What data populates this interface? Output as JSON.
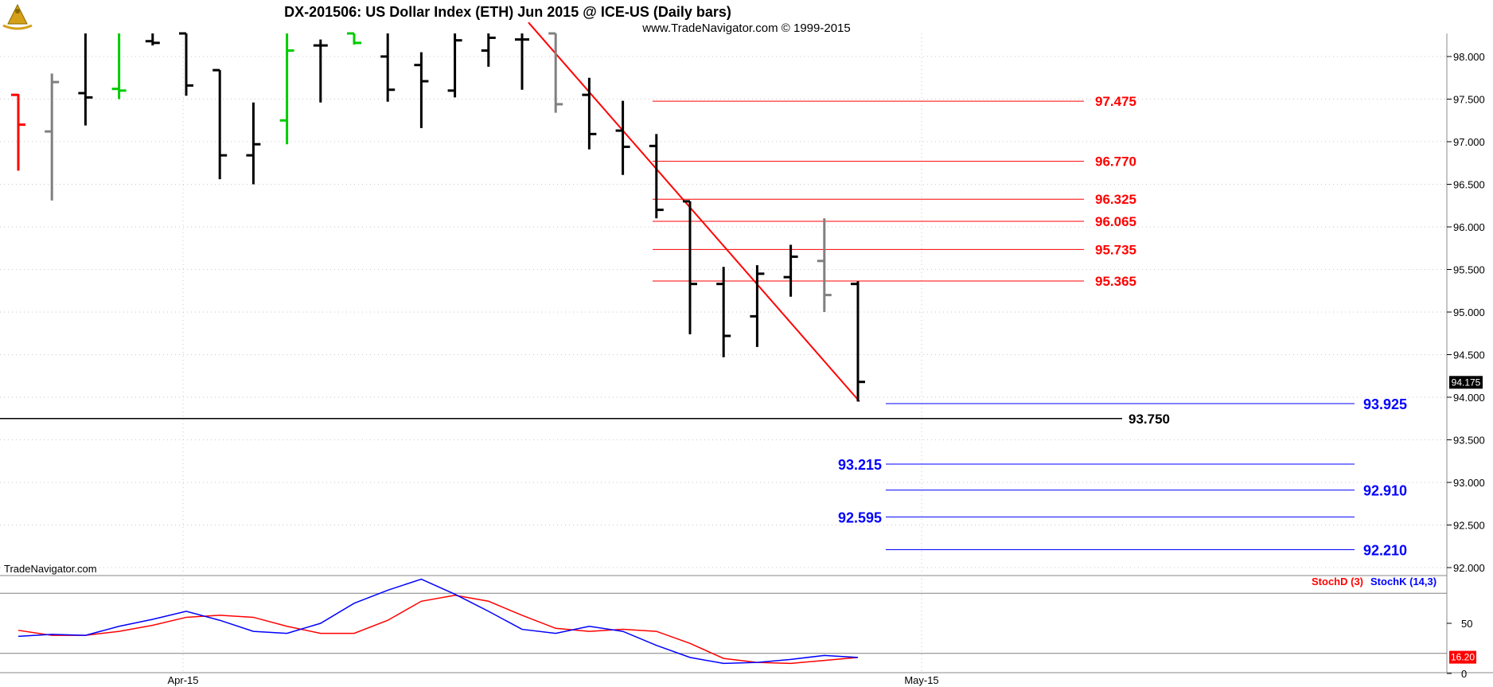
{
  "header": {
    "title": "DX-201506:  US Dollar Index (ETH) Jun 2015 @ ICE-US  (Daily bars)",
    "subtitle": "www.TradeNavigator.com © 1999-2015",
    "watermark": "TradeNavigator.com"
  },
  "logo": {
    "icon": "sextant-logo-icon",
    "color": "#d4a017"
  },
  "colors": {
    "bar": "#000000",
    "bar_gray": "#808080",
    "bar_red": "#ff0000",
    "bar_green": "#00cc00",
    "fib_up": "#ff0000",
    "fib_down": "#0000ff",
    "support": "#000000",
    "stoch_d": "#ff0000",
    "stoch_k": "#0000ff"
  },
  "chart_data": [
    {
      "type": "ohlc",
      "title": "DX-201506:  US Dollar Index (ETH) Jun 2015 @ ICE-US  (Daily bars)",
      "ylim": [
        91.75,
        98.4
      ],
      "y_ticks": [
        "98.000",
        "97.500",
        "97.000",
        "96.500",
        "96.000",
        "95.500",
        "95.000",
        "94.500",
        "94.000",
        "93.500",
        "93.000",
        "92.500",
        "92.000"
      ],
      "x_labels": [
        "Apr-15",
        "May-15"
      ],
      "bars": [
        {
          "o": 97.55,
          "h": 97.56,
          "l": 96.66,
          "c": 97.2,
          "color": "red"
        },
        {
          "o": 97.12,
          "h": 97.8,
          "l": 96.31,
          "c": 97.7,
          "color": "gray"
        },
        {
          "o": 97.57,
          "h": 98.4,
          "l": 97.19,
          "c": 97.52,
          "color": "black"
        },
        {
          "o": 97.62,
          "h": 98.4,
          "l": 97.5,
          "c": 97.6,
          "color": "green"
        },
        {
          "o": 98.18,
          "h": 98.4,
          "l": 98.13,
          "c": 98.16,
          "color": "black"
        },
        {
          "o": 98.3,
          "h": 98.4,
          "l": 97.54,
          "c": 97.66,
          "color": "black"
        },
        {
          "o": 97.84,
          "h": 97.84,
          "l": 96.56,
          "c": 96.84,
          "color": "black"
        },
        {
          "o": 96.84,
          "h": 97.46,
          "l": 96.5,
          "c": 96.97,
          "color": "black"
        },
        {
          "o": 97.25,
          "h": 98.4,
          "l": 96.97,
          "c": 98.07,
          "color": "green"
        },
        {
          "o": 98.13,
          "h": 98.2,
          "l": 97.46,
          "c": 98.13,
          "color": "black"
        },
        {
          "o": 98.4,
          "h": 98.4,
          "l": 98.14,
          "c": 98.16,
          "color": "green"
        },
        {
          "o": 98.0,
          "h": 98.4,
          "l": 97.47,
          "c": 97.61,
          "color": "black"
        },
        {
          "o": 97.9,
          "h": 98.05,
          "l": 97.16,
          "c": 97.71,
          "color": "black"
        },
        {
          "o": 97.6,
          "h": 98.4,
          "l": 97.52,
          "c": 98.19,
          "color": "black"
        },
        {
          "o": 98.07,
          "h": 98.4,
          "l": 97.88,
          "c": 98.22,
          "color": "black"
        },
        {
          "o": 98.2,
          "h": 98.4,
          "l": 97.61,
          "c": 98.2,
          "color": "black"
        },
        {
          "o": 98.3,
          "h": 98.4,
          "l": 97.34,
          "c": 97.44,
          "color": "gray"
        },
        {
          "o": 97.55,
          "h": 97.75,
          "l": 96.91,
          "c": 97.09,
          "color": "black"
        },
        {
          "o": 97.13,
          "h": 97.48,
          "l": 96.61,
          "c": 96.94,
          "color": "black"
        },
        {
          "o": 96.95,
          "h": 97.09,
          "l": 96.1,
          "c": 96.2,
          "color": "black"
        },
        {
          "o": 96.3,
          "h": 96.3,
          "l": 94.74,
          "c": 95.33,
          "color": "black"
        },
        {
          "o": 95.33,
          "h": 95.53,
          "l": 94.47,
          "c": 94.72,
          "color": "black"
        },
        {
          "o": 94.95,
          "h": 95.55,
          "l": 94.59,
          "c": 95.45,
          "color": "black"
        },
        {
          "o": 95.41,
          "h": 95.79,
          "l": 95.18,
          "c": 95.65,
          "color": "black"
        },
        {
          "o": 95.6,
          "h": 96.1,
          "l": 95.0,
          "c": 95.2,
          "color": "gray"
        },
        {
          "o": 95.33,
          "h": 95.36,
          "l": 93.95,
          "c": 94.18,
          "color": "black"
        }
      ],
      "last_price": "94.175",
      "fib_levels_up": [
        "97.475",
        "96.770",
        "96.325",
        "96.065",
        "95.735",
        "95.365"
      ],
      "fib_levels_down": [
        {
          "value": "93.925",
          "label_side": "right"
        },
        {
          "value": "93.215",
          "label_side": "left"
        },
        {
          "value": "92.910",
          "label_side": "right"
        },
        {
          "value": "92.595",
          "label_side": "left"
        },
        {
          "value": "92.210",
          "label_side": "right"
        }
      ],
      "support": "93.750",
      "trendline": [
        {
          "bar": 15,
          "value": 98.4
        },
        {
          "bar": 25,
          "value": 93.95
        }
      ]
    },
    {
      "type": "line",
      "ylim": [
        0,
        100
      ],
      "y_ticks": [
        "50",
        "0"
      ],
      "ref_lines": [
        20,
        80
      ],
      "last_value": "16.20",
      "series": [
        {
          "name": "StochD (3)",
          "color": "#ff0000",
          "x": [
            0,
            1,
            2,
            3,
            4,
            5,
            6,
            7,
            8,
            9,
            10,
            11,
            12,
            13,
            14,
            15,
            16,
            17,
            18,
            19,
            20,
            21,
            22,
            23,
            24,
            25
          ],
          "values": [
            43,
            38,
            38,
            42,
            48,
            56,
            58,
            56,
            47,
            40,
            40,
            53,
            72,
            78,
            72,
            58,
            45,
            42,
            44,
            42,
            30,
            15,
            11,
            10,
            13,
            16
          ]
        },
        {
          "name": "StochK (14,3)",
          "color": "#0000ff",
          "x": [
            0,
            1,
            2,
            3,
            4,
            5,
            6,
            7,
            8,
            9,
            10,
            11,
            12,
            13,
            14,
            15,
            16,
            17,
            18,
            19,
            20,
            21,
            22,
            23,
            24,
            25
          ],
          "values": [
            37,
            39,
            38,
            47,
            54,
            62,
            53,
            42,
            40,
            50,
            70,
            83,
            94,
            79,
            62,
            44,
            40,
            47,
            42,
            28,
            16,
            10,
            11,
            14,
            18,
            16
          ]
        }
      ]
    }
  ]
}
